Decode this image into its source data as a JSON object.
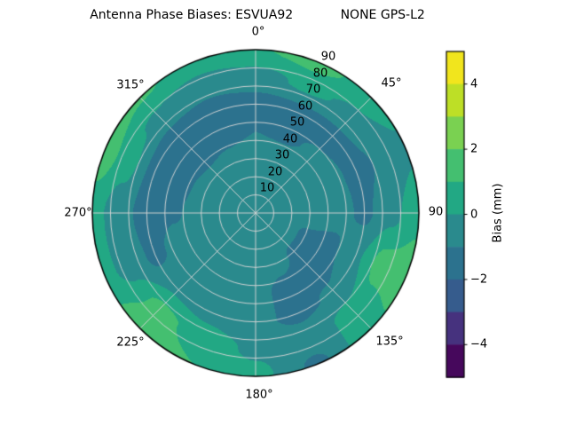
{
  "title": "Antenna Phase Biases: ESVUA92            NONE GPS-L2",
  "polar": {
    "theta_labels": [
      "0°",
      "45°",
      "90",
      "135°",
      "180°",
      "225°",
      "270°",
      "315°"
    ],
    "radial_labels": [
      "10",
      "20",
      "30",
      "40",
      "50",
      "60",
      "70",
      "80",
      "90"
    ]
  },
  "colorbar": {
    "label": "Bias (mm)",
    "ticks": [
      "4",
      "2",
      "0",
      "−2",
      "−4"
    ],
    "tick_values": [
      4,
      2,
      0,
      -2,
      -4
    ],
    "vmin": -5,
    "vmax": 5,
    "band_colors": [
      "#46085c",
      "#46327e",
      "#365c8d",
      "#2c728e",
      "#2a8a8d",
      "#22a884",
      "#44bf70",
      "#7ad151",
      "#bddf26",
      "#f1e51d"
    ]
  },
  "chart_data": {
    "type": "heatmap",
    "projection": "polar",
    "title": "Antenna Phase Biases: ESVUA92   NONE GPS-L2",
    "station": "ESVUA92",
    "antenna_signal": "NONE GPS-L2",
    "colorbar_label": "Bias (mm)",
    "units": "mm",
    "theta_ticks_deg": [
      0,
      45,
      90,
      135,
      180,
      225,
      270,
      315
    ],
    "radius_ticks": [
      10,
      20,
      30,
      40,
      50,
      60,
      70,
      80,
      90
    ],
    "radius_range": [
      0,
      90
    ],
    "value_range": [
      -5,
      5
    ],
    "contour_levels": [
      -5,
      -4,
      -3,
      -2,
      -1,
      0,
      1,
      2,
      3,
      4,
      5
    ],
    "legend_position": "right-colorbar",
    "grid": true,
    "azimuth_deg": [
      0,
      22.5,
      45,
      67.5,
      90,
      112.5,
      135,
      157.5,
      180,
      202.5,
      225,
      247.5,
      270,
      292.5,
      315,
      337.5
    ],
    "zenith_deg": [
      0,
      15,
      30,
      45,
      60,
      75,
      90
    ],
    "bias_mm": [
      [
        -0.5,
        -0.5,
        -0.6,
        -1.0,
        -1.4,
        -0.4,
        0.9
      ],
      [
        -0.5,
        -0.5,
        -0.5,
        -1.1,
        -1.4,
        0.2,
        1.4
      ],
      [
        -0.5,
        -0.5,
        -0.5,
        -0.9,
        -1.3,
        -0.2,
        0.5
      ],
      [
        -0.5,
        -0.5,
        -0.5,
        -0.7,
        -1.3,
        -0.9,
        -0.2
      ],
      [
        -0.5,
        -0.5,
        -0.5,
        -0.6,
        -1.2,
        -0.3,
        0.7
      ],
      [
        -0.5,
        -0.6,
        -1.1,
        -1.2,
        -0.2,
        1.4,
        1.5
      ],
      [
        -0.5,
        -0.6,
        -1.1,
        -1.4,
        -0.9,
        0.3,
        0.8
      ],
      [
        -0.5,
        -0.6,
        -0.8,
        -1.2,
        -1.2,
        -0.5,
        -1.2
      ],
      [
        -0.5,
        -0.5,
        -0.6,
        -0.8,
        -0.8,
        -0.2,
        0.3
      ],
      [
        -0.5,
        -0.5,
        -0.5,
        -0.6,
        -0.4,
        0.6,
        1.0
      ],
      [
        -0.5,
        -0.5,
        -0.5,
        -0.5,
        -0.2,
        1.3,
        1.6
      ],
      [
        -0.5,
        -0.5,
        -0.5,
        -0.7,
        -1.2,
        -0.4,
        0.3
      ],
      [
        -0.5,
        -0.5,
        -0.6,
        -1.1,
        -1.4,
        -0.6,
        0.4
      ],
      [
        -0.5,
        -0.5,
        -0.7,
        -1.3,
        -1.4,
        0.4,
        1.6
      ],
      [
        -0.5,
        -0.6,
        -0.8,
        -1.4,
        -1.5,
        -0.2,
        1.1
      ],
      [
        -0.5,
        -0.5,
        -0.7,
        -1.2,
        -1.5,
        -0.6,
        0.7
      ]
    ]
  }
}
